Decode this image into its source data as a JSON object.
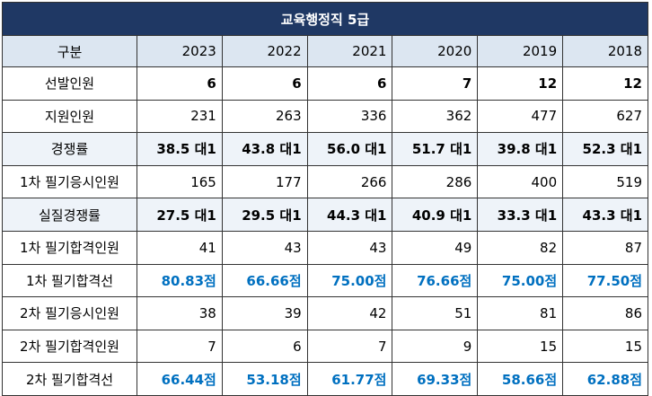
{
  "table": {
    "title": "교육행정직 5급",
    "header": [
      "구분",
      "2023",
      "2022",
      "2021",
      "2020",
      "2019",
      "2018"
    ],
    "rows": [
      [
        "선발인원",
        "6",
        "6",
        "6",
        "7",
        "12",
        "12"
      ],
      [
        "지원인원",
        "231",
        "263",
        "336",
        "362",
        "477",
        "627"
      ],
      [
        "경쟁률",
        "38.5 대1",
        "43.8 대1",
        "56.0 대1",
        "51.7 대1",
        "39.8 대1",
        "52.3 대1"
      ],
      [
        "1차 필기응시인원",
        "165",
        "177",
        "266",
        "286",
        "400",
        "519"
      ],
      [
        "실질경쟁률",
        "27.5 대1",
        "29.5 대1",
        "44.3 대1",
        "40.9 대1",
        "33.3 대1",
        "43.3 대1"
      ],
      [
        "1차 필기합격인원",
        "41",
        "43",
        "43",
        "49",
        "82",
        "87"
      ],
      [
        "1차 필기합격선",
        "80.83점",
        "66.66점",
        "75.00점",
        "76.66점",
        "75.00점",
        "77.50점"
      ],
      [
        "2차 필기응시인원",
        "38",
        "39",
        "42",
        "51",
        "81",
        "86"
      ],
      [
        "2차 필기합격인원",
        "7",
        "6",
        "7",
        "9",
        "15",
        "15"
      ],
      [
        "2차 필기합격선",
        "66.44점",
        "53.18점",
        "61.77점",
        "69.33점",
        "58.66점",
        "62.88점"
      ]
    ]
  }
}
